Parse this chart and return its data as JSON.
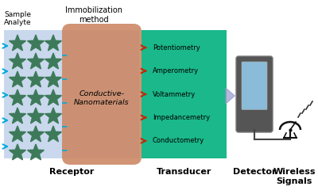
{
  "bg_color": "#ffffff",
  "labels": {
    "sample_analyte": "Sample\nAnalyte",
    "immobilization": "Immobilization\nmethod",
    "conductive": "Conductive-\nNanomaterials",
    "receptor": "Receptor",
    "transducer": "Transducer",
    "detector": "Detector",
    "wireless": "Wireless\nSignals"
  },
  "transducer_items": [
    "Potentiometry",
    "Amperometry",
    "Voltammetry",
    "Impedancemetry",
    "Conductometry"
  ],
  "colors": {
    "receptor_bg": "#b8cce8",
    "blob_color": "#cc8866",
    "transducer_bg": "#1ab88a",
    "star_color": "#3d7a5a",
    "arrow_blue": "#00aadd",
    "arrow_red": "#cc2200",
    "arrow_purple": "#9999cc",
    "detector_body": "#555555",
    "detector_screen_top": "#90c8e8",
    "detector_screen_bot": "#c8e8f8",
    "wire_color": "#444444",
    "dish_color": "#111111",
    "signal_color": "#333333"
  },
  "figsize": [
    4.0,
    2.45
  ],
  "dpi": 100
}
